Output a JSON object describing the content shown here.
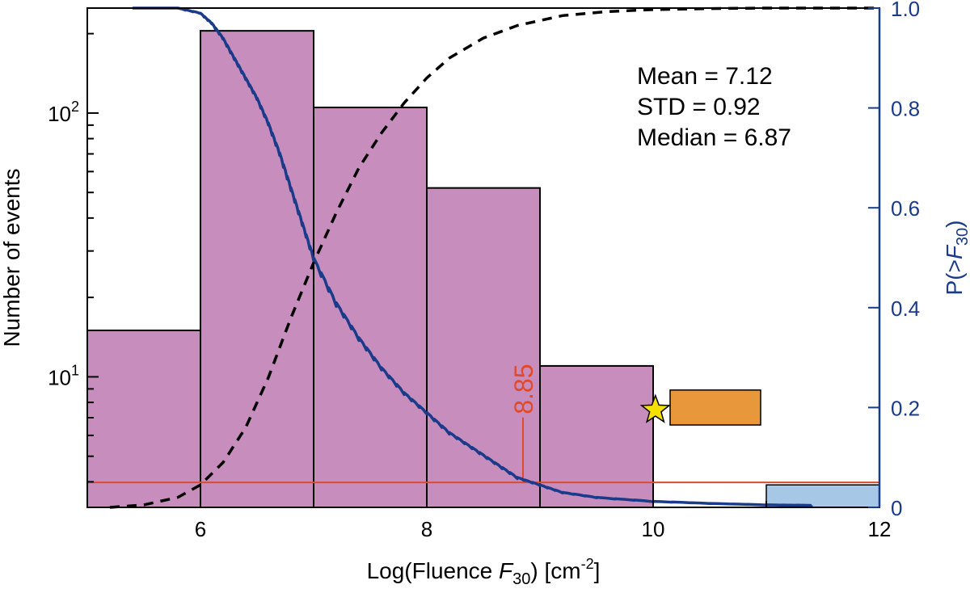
{
  "chart_data": {
    "type": "bar",
    "xlabel_prefix": "Log(Fluence ",
    "xlabel_var": "F",
    "xlabel_sub": "30",
    "xlabel_mid": ") [cm",
    "xlabel_sup": "-2",
    "xlabel_suffix": "]",
    "ylabel": "Number of events",
    "y2label_prefix": "P(>",
    "y2label_var": "F",
    "y2label_sub": "30",
    "y2label_suffix": ")",
    "xlim": [
      5,
      12
    ],
    "ylim_log": [
      3.2,
      250
    ],
    "y_scale": "log",
    "y2lim": [
      0,
      1.0
    ],
    "x_ticks": [
      6,
      8,
      10,
      12
    ],
    "y_ticks": [
      {
        "value": 10,
        "base": "10",
        "exp": "1"
      },
      {
        "value": 100,
        "base": "10",
        "exp": "2"
      }
    ],
    "y2_ticks": [
      "0",
      "0.2",
      "0.4",
      "0.6",
      "0.8",
      "1.0"
    ],
    "histogram": {
      "color": "#c78dbd",
      "bins": [
        {
          "x0": 5,
          "x1": 6,
          "count": 15
        },
        {
          "x0": 6,
          "x1": 7,
          "count": 205
        },
        {
          "x0": 7,
          "x1": 8,
          "count": 105
        },
        {
          "x0": 8,
          "x1": 9,
          "count": 52
        },
        {
          "x0": 9,
          "x1": 10,
          "count": 11
        }
      ]
    },
    "exceedance_curve": {
      "color": "#1a3a8a",
      "x": [
        5.4,
        5.8,
        6.0,
        6.1,
        6.2,
        6.3,
        6.4,
        6.5,
        6.6,
        6.7,
        6.8,
        6.9,
        7.0,
        7.2,
        7.4,
        7.6,
        7.8,
        8.0,
        8.2,
        8.4,
        8.6,
        8.8,
        9.0,
        9.2,
        9.5,
        10.0,
        10.5,
        11.0,
        11.4
      ],
      "y": [
        1.0,
        1.0,
        0.99,
        0.97,
        0.94,
        0.9,
        0.86,
        0.82,
        0.77,
        0.71,
        0.64,
        0.57,
        0.5,
        0.41,
        0.34,
        0.28,
        0.23,
        0.19,
        0.15,
        0.12,
        0.09,
        0.06,
        0.045,
        0.03,
        0.02,
        0.012,
        0.008,
        0.005,
        0.004
      ]
    },
    "cdf_fit": {
      "style": "dashed",
      "color": "#000000",
      "x": [
        5.2,
        5.5,
        5.8,
        6.0,
        6.2,
        6.4,
        6.6,
        6.8,
        7.0,
        7.2,
        7.4,
        7.6,
        7.8,
        8.0,
        8.2,
        8.5,
        8.8,
        9.2,
        9.6,
        10.0,
        10.5,
        11.0,
        11.5,
        12.0
      ],
      "y": [
        0.0,
        0.005,
        0.02,
        0.045,
        0.09,
        0.16,
        0.26,
        0.38,
        0.49,
        0.59,
        0.68,
        0.75,
        0.81,
        0.86,
        0.9,
        0.94,
        0.965,
        0.985,
        0.993,
        0.997,
        0.999,
        1.0,
        1.0,
        1.0
      ]
    },
    "threshold": {
      "color": "#e04a2a",
      "p": 0.05,
      "x_value": 8.85,
      "label": "8.85",
      "y_top": 0.18
    },
    "star": {
      "x": 10.02,
      "p": 0.195,
      "color": "#f6e000"
    },
    "orange_box": {
      "x0": 10.15,
      "x1": 10.95,
      "p0": 0.165,
      "p1": 0.235,
      "color": "#e8983a"
    },
    "blue_box": {
      "x0": 11.0,
      "x1": 12.0,
      "p0": 0.0,
      "p1": 0.045,
      "color": "#a6c8e6"
    },
    "stats_text": [
      "Mean = 7.12",
      "STD = 0.92",
      "Median = 6.87"
    ],
    "grid": false,
    "legend": "none"
  }
}
